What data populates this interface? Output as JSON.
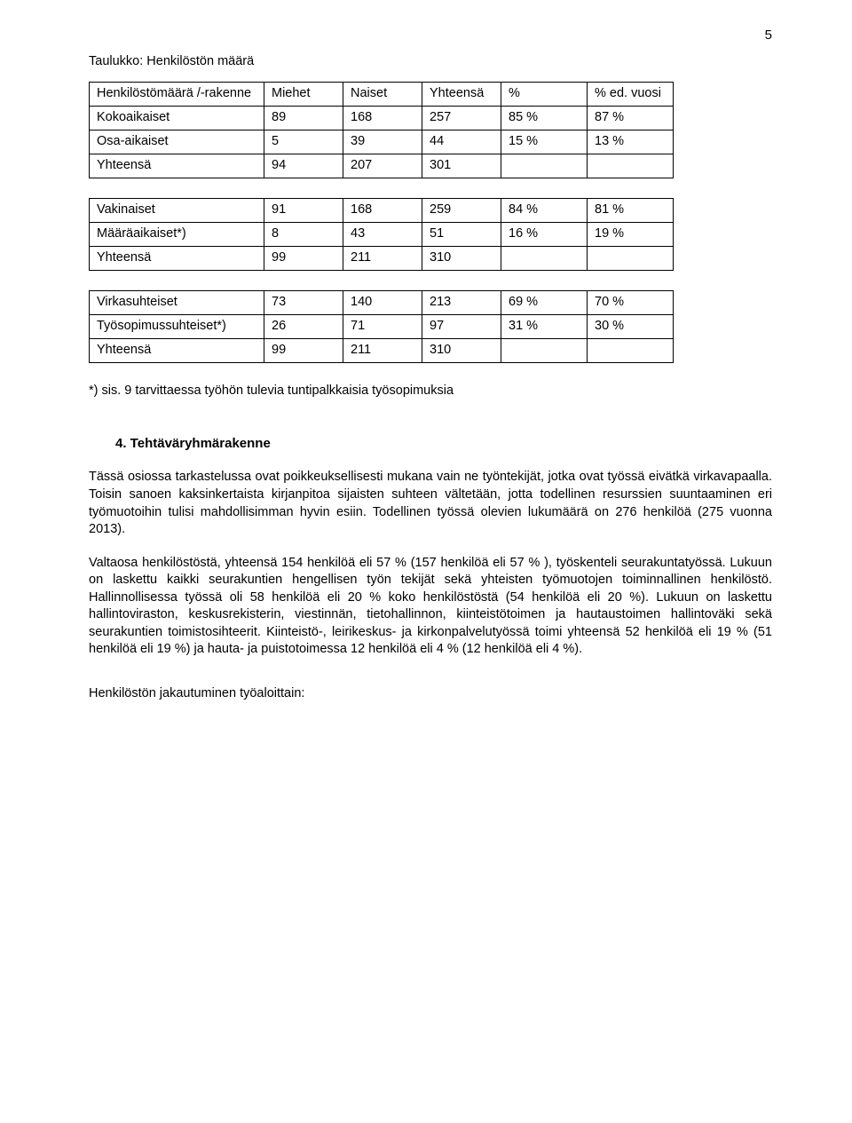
{
  "page_number": "5",
  "caption": "Taulukko: Henkilöstön määrä",
  "table1": {
    "header": [
      "Henkilöstömäärä /-rakenne",
      "Miehet",
      "Naiset",
      "Yhteensä",
      "%",
      "% ed. vuosi"
    ],
    "rows": [
      [
        "Kokoaikaiset",
        "89",
        "168",
        "257",
        "85 %",
        "87 %"
      ],
      [
        "Osa-aikaiset",
        "5",
        "39",
        "44",
        "15 %",
        "13 %"
      ],
      [
        "Yhteensä",
        "94",
        "207",
        "301",
        "",
        ""
      ]
    ]
  },
  "table2": {
    "rows": [
      [
        "Vakinaiset",
        "91",
        "168",
        "259",
        "84 %",
        "81 %"
      ],
      [
        "Määräaikaiset*)",
        "8",
        "43",
        "51",
        "16 %",
        "19 %"
      ],
      [
        "Yhteensä",
        "99",
        "211",
        "310",
        "",
        ""
      ]
    ]
  },
  "table3": {
    "rows": [
      [
        "Virkasuhteiset",
        "73",
        "140",
        "213",
        "69 %",
        "70 %"
      ],
      [
        "Työsopimussuhteiset*)",
        "26",
        "71",
        "97",
        "31 %",
        "30 %"
      ],
      [
        "Yhteensä",
        "99",
        "211",
        "310",
        "",
        ""
      ]
    ]
  },
  "footnote": "*) sis. 9 tarvittaessa työhön tulevia tuntipalkkaisia työsopimuksia",
  "section_heading": "4.  Tehtäväryhmärakenne",
  "para1": "Tässä osiossa tarkastelussa ovat poikkeuksellisesti mukana vain ne työntekijät, jotka ovat työssä eivätkä virkavapaalla. Toisin sanoen kaksinkertaista kirjanpitoa sijaisten suhteen vältetään, jotta todellinen resurssien suuntaaminen eri työmuotoihin tulisi mahdollisimman hyvin esiin. Todellinen työssä olevien lukumäärä on 276 henkilöä (275 vuonna 2013).",
  "para2": "Valtaosa henkilöstöstä, yhteensä 154 henkilöä eli 57 % (157 henkilöä eli 57 % ), työskenteli seurakuntatyössä. Lukuun on laskettu kaikki seurakuntien hengellisen työn tekijät sekä yhteisten työmuotojen toiminnallinen henkilöstö. Hallinnollisessa työssä oli 58 henkilöä eli 20 % koko henkilöstöstä (54 henkilöä eli 20 %). Lukuun on laskettu hallintoviraston, keskusrekisterin, viestinnän, tietohallinnon, kiinteistötoimen ja hautaustoimen hallintoväki sekä seurakuntien toimistosihteerit. Kiinteistö-, leirikeskus- ja kirkonpalvelutyössä toimi yhteensä 52 henkilöä eli 19 % (51 henkilöä eli 19 %) ja hauta- ja puistotoimessa 12 henkilöä eli 4 % (12 henkilöä eli 4 %).",
  "subhead": "Henkilöstön jakautuminen työaloittain:"
}
